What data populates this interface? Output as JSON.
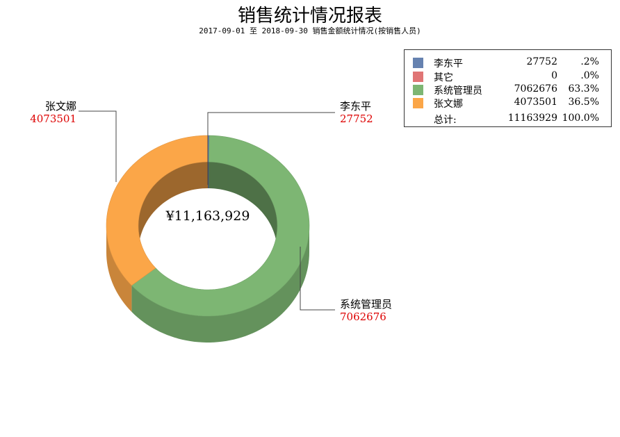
{
  "header": {
    "title": "销售统计情况报表",
    "subtitle": "2017-09-01 至 2018-09-30 销售金额统计情况(按销售人员)"
  },
  "chart_data": {
    "type": "pie",
    "style": "3d-donut",
    "center_label": "¥11,163,929",
    "legend_placement": "top-right",
    "series": [
      {
        "name": "李东平",
        "value": 27752,
        "percent": ".2%",
        "color": "#6682B0"
      },
      {
        "name": "其它",
        "value": 0,
        "percent": ".0%",
        "color": "#E07575"
      },
      {
        "name": "系统管理员",
        "value": 7062676,
        "percent": "63.3%",
        "color": "#7DB673"
      },
      {
        "name": "张文娜",
        "value": 4073501,
        "percent": "36.5%",
        "color": "#FBA648"
      }
    ],
    "total": {
      "label": "总计:",
      "value": "11163929",
      "percent": "100.0%"
    },
    "callouts": [
      {
        "name": "李东平",
        "value": "27752"
      },
      {
        "name": "系统管理员",
        "value": "7062676"
      },
      {
        "name": "张文娜",
        "value": "4073501"
      }
    ],
    "callout_value_color": "#DD0000"
  }
}
